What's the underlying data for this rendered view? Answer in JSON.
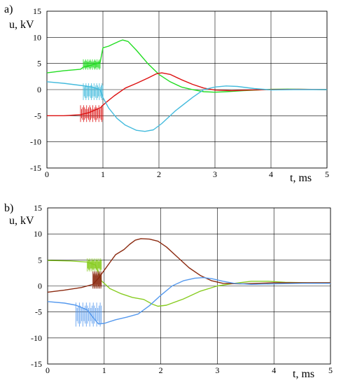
{
  "chart_data": [
    {
      "type": "line",
      "panel_label": "a)",
      "ylabel": "u, kV",
      "xlabel": "t, ms",
      "xlim": [
        0,
        5
      ],
      "ylim": [
        -15,
        15
      ],
      "x_ticks": [
        0,
        1,
        2,
        3,
        4,
        5
      ],
      "y_ticks": [
        15,
        10,
        5,
        0,
        -5,
        -10,
        -15
      ],
      "grid": true,
      "colors": [
        "#22dd22",
        "#dd1111",
        "#44bbdd"
      ],
      "series": [
        {
          "color": "#22dd22",
          "points": [
            [
              0,
              3.2
            ],
            [
              0.3,
              3.6
            ],
            [
              0.6,
              3.9
            ],
            [
              0.65,
              4.3
            ],
            [
              0.8,
              4.7
            ],
            [
              0.95,
              5.2
            ],
            [
              1.0,
              8.0
            ],
            [
              1.1,
              8.3
            ],
            [
              1.2,
              8.8
            ],
            [
              1.3,
              9.3
            ],
            [
              1.35,
              9.5
            ],
            [
              1.45,
              9.2
            ],
            [
              1.6,
              7.5
            ],
            [
              1.8,
              5.0
            ],
            [
              2.0,
              2.9
            ],
            [
              2.2,
              1.5
            ],
            [
              2.4,
              0.5
            ],
            [
              2.6,
              0.0
            ],
            [
              2.8,
              -0.4
            ],
            [
              3.0,
              -0.5
            ],
            [
              3.2,
              -0.4
            ],
            [
              3.5,
              -0.2
            ],
            [
              3.8,
              -0.05
            ],
            [
              4.0,
              0.05
            ],
            [
              4.3,
              0.1
            ],
            [
              4.6,
              0.05
            ],
            [
              5.0,
              0.0
            ]
          ],
          "bursts": [
            [
              0.65,
              0.95,
              3.8,
              5.8
            ]
          ]
        },
        {
          "color": "#dd1111",
          "points": [
            [
              0,
              -5.0
            ],
            [
              0.3,
              -5.0
            ],
            [
              0.6,
              -4.8
            ],
            [
              0.75,
              -4.4
            ],
            [
              0.95,
              -3.5
            ],
            [
              1.05,
              -2.5
            ],
            [
              1.2,
              -1.2
            ],
            [
              1.4,
              0.3
            ],
            [
              1.6,
              1.2
            ],
            [
              1.8,
              2.2
            ],
            [
              1.95,
              3.0
            ],
            [
              2.05,
              3.2
            ],
            [
              2.2,
              2.9
            ],
            [
              2.4,
              1.9
            ],
            [
              2.6,
              1.0
            ],
            [
              2.8,
              0.3
            ],
            [
              3.0,
              -0.1
            ],
            [
              3.3,
              -0.2
            ],
            [
              3.6,
              -0.1
            ],
            [
              4.0,
              0.0
            ],
            [
              4.5,
              0.05
            ],
            [
              5.0,
              0.0
            ]
          ],
          "bursts": [
            [
              0.6,
              1.0,
              -6.2,
              -3.0
            ]
          ]
        },
        {
          "color": "#44bbdd",
          "points": [
            [
              0,
              1.5
            ],
            [
              0.3,
              1.2
            ],
            [
              0.6,
              0.8
            ],
            [
              0.8,
              0.5
            ],
            [
              0.95,
              0.0
            ],
            [
              1.0,
              -1.5
            ],
            [
              1.1,
              -3.5
            ],
            [
              1.25,
              -5.5
            ],
            [
              1.4,
              -6.8
            ],
            [
              1.6,
              -7.8
            ],
            [
              1.75,
              -8.0
            ],
            [
              1.9,
              -7.7
            ],
            [
              2.05,
              -6.5
            ],
            [
              2.3,
              -4.0
            ],
            [
              2.6,
              -1.5
            ],
            [
              2.8,
              0.0
            ],
            [
              3.0,
              0.5
            ],
            [
              3.2,
              0.7
            ],
            [
              3.4,
              0.6
            ],
            [
              3.7,
              0.2
            ],
            [
              4.0,
              -0.05
            ],
            [
              4.4,
              0.0
            ],
            [
              5.0,
              0.0
            ]
          ],
          "bursts": [
            [
              0.65,
              1.0,
              -2.0,
              1.2
            ]
          ]
        }
      ]
    },
    {
      "type": "line",
      "panel_label": "b)",
      "ylabel": "u, kV",
      "xlabel": "t, ms",
      "xlim": [
        0,
        5
      ],
      "ylim": [
        -15,
        15
      ],
      "x_ticks": [
        0,
        1,
        2,
        3,
        4,
        5
      ],
      "y_ticks": [
        15,
        10,
        5,
        0,
        -5,
        -10,
        -15
      ],
      "grid": true,
      "colors": [
        "#88cc22",
        "#8b2a10",
        "#5599ee"
      ],
      "series": [
        {
          "color": "#88cc22",
          "points": [
            [
              0,
              4.9
            ],
            [
              0.4,
              4.8
            ],
            [
              0.7,
              4.6
            ],
            [
              0.85,
              4.0
            ],
            [
              0.9,
              2.5
            ],
            [
              0.95,
              1.0
            ],
            [
              1.1,
              -0.5
            ],
            [
              1.3,
              -1.5
            ],
            [
              1.5,
              -2.2
            ],
            [
              1.7,
              -2.6
            ],
            [
              1.85,
              -3.5
            ],
            [
              1.95,
              -3.9
            ],
            [
              2.1,
              -3.7
            ],
            [
              2.4,
              -2.5
            ],
            [
              2.7,
              -1.0
            ],
            [
              3.0,
              0.0
            ],
            [
              3.3,
              0.5
            ],
            [
              3.6,
              0.9
            ],
            [
              3.9,
              0.9
            ],
            [
              4.2,
              0.7
            ],
            [
              4.6,
              0.6
            ],
            [
              5.0,
              0.6
            ]
          ],
          "bursts": [
            [
              0.7,
              0.95,
              2.8,
              5.3
            ]
          ]
        },
        {
          "color": "#8b2a10",
          "points": [
            [
              0,
              -1.2
            ],
            [
              0.3,
              -0.8
            ],
            [
              0.6,
              -0.3
            ],
            [
              0.8,
              0.3
            ],
            [
              0.9,
              1.5
            ],
            [
              1.0,
              3.0
            ],
            [
              1.1,
              4.5
            ],
            [
              1.2,
              6.0
            ],
            [
              1.35,
              7.0
            ],
            [
              1.45,
              8.0
            ],
            [
              1.55,
              8.8
            ],
            [
              1.65,
              9.1
            ],
            [
              1.8,
              9.0
            ],
            [
              1.95,
              8.6
            ],
            [
              2.1,
              7.5
            ],
            [
              2.3,
              5.5
            ],
            [
              2.5,
              3.5
            ],
            [
              2.7,
              2.0
            ],
            [
              2.9,
              1.0
            ],
            [
              3.1,
              0.5
            ],
            [
              3.4,
              0.4
            ],
            [
              3.7,
              0.5
            ],
            [
              4.0,
              0.6
            ],
            [
              4.5,
              0.6
            ],
            [
              5.0,
              0.6
            ]
          ],
          "bursts": [
            [
              0.8,
              0.95,
              -0.5,
              2.8
            ]
          ]
        },
        {
          "color": "#5599ee",
          "points": [
            [
              0,
              -3.0
            ],
            [
              0.3,
              -3.3
            ],
            [
              0.5,
              -3.7
            ],
            [
              0.7,
              -4.6
            ],
            [
              0.8,
              -6.0
            ],
            [
              0.9,
              -7.3
            ],
            [
              1.0,
              -7.2
            ],
            [
              1.2,
              -6.5
            ],
            [
              1.4,
              -6.0
            ],
            [
              1.6,
              -5.4
            ],
            [
              1.8,
              -3.8
            ],
            [
              2.0,
              -1.8
            ],
            [
              2.2,
              0.0
            ],
            [
              2.4,
              1.0
            ],
            [
              2.6,
              1.5
            ],
            [
              2.75,
              1.6
            ],
            [
              2.9,
              1.4
            ],
            [
              3.1,
              0.9
            ],
            [
              3.3,
              0.5
            ],
            [
              3.6,
              0.3
            ],
            [
              4.0,
              0.4
            ],
            [
              4.5,
              0.5
            ],
            [
              5.0,
              0.5
            ]
          ],
          "bursts": [
            [
              0.5,
              0.95,
              -7.8,
              -3.2
            ]
          ]
        }
      ]
    }
  ]
}
